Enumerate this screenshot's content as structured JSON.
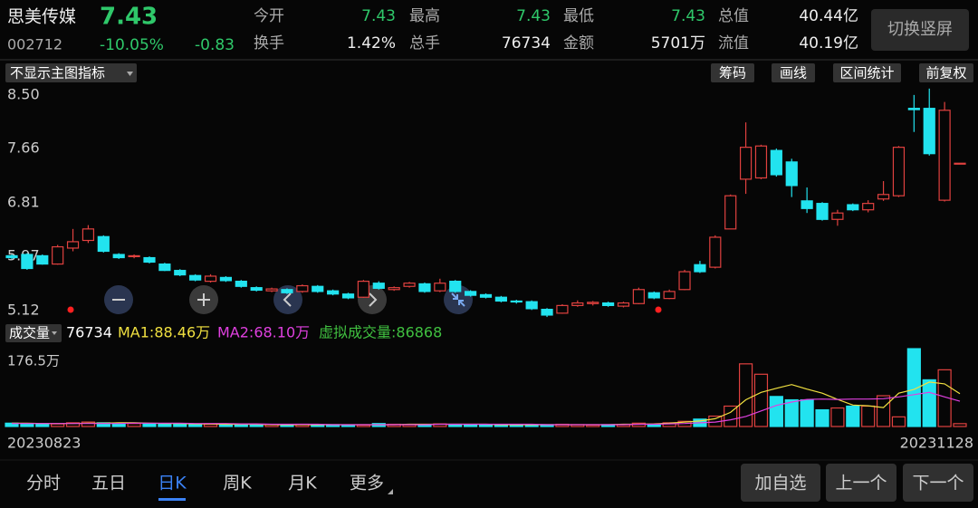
{
  "header": {
    "name": "思美传媒",
    "price": 7.43,
    "code": "002712",
    "pct": "-10.05%",
    "change": -0.83,
    "stats": [
      {
        "label": "今开",
        "value": 7.43,
        "color": "#2fc86a"
      },
      {
        "label": "最高",
        "value": 7.43,
        "color": "#2fc86a"
      },
      {
        "label": "最低",
        "value": 7.43,
        "color": "#2fc86a"
      },
      {
        "label": "总值",
        "value": "40.44亿",
        "color": "#eeeeee"
      },
      {
        "label": "换手",
        "value": "1.42%",
        "color": "#eeeeee"
      },
      {
        "label": "总手",
        "value": 76734,
        "color": "#eeeeee"
      },
      {
        "label": "金额",
        "value": "5701万",
        "color": "#eeeeee"
      },
      {
        "label": "流值",
        "value": "40.19亿",
        "color": "#eeeeee"
      }
    ],
    "button": "切换竖屏"
  },
  "toolbar": {
    "indicator": "不显示主图指标",
    "tools": [
      "筹码",
      "画线",
      "区间统计",
      "前复权"
    ]
  },
  "kline": {
    "type": "candlestick",
    "ylim": [
      4.95,
      8.64
    ],
    "yticks": [
      {
        "value": 8.5,
        "label": "8.50"
      },
      7.66,
      6.81,
      5.97,
      5.12
    ],
    "up_color": "#e0413f",
    "down_color": "#22e3ef",
    "open": [
      5.98,
      6.0,
      5.98,
      5.85,
      6.1,
      6.22,
      6.28,
      6.0,
      5.97,
      5.95,
      5.85,
      5.75,
      5.67,
      5.58,
      5.64,
      5.58,
      5.48,
      5.43,
      5.45,
      5.42,
      5.5,
      5.43,
      5.38,
      5.33,
      5.55,
      5.45,
      5.5,
      5.54,
      5.43,
      5.58,
      5.42,
      5.37,
      5.33,
      5.27,
      5.26,
      5.14,
      5.08,
      5.2,
      5.23,
      5.24,
      5.19,
      5.23,
      5.4,
      5.31,
      5.45,
      5.84,
      5.8,
      6.4,
      7.18,
      7.2,
      7.63,
      7.45,
      6.84,
      6.8,
      6.55,
      6.78,
      6.7,
      6.87,
      6.92,
      8.29,
      8.29,
      6.85,
      7.43
    ],
    "close": [
      5.95,
      5.78,
      5.85,
      6.12,
      6.2,
      6.4,
      6.05,
      5.95,
      5.98,
      5.88,
      5.75,
      5.68,
      5.6,
      5.66,
      5.59,
      5.5,
      5.44,
      5.46,
      5.4,
      5.51,
      5.42,
      5.38,
      5.32,
      5.58,
      5.47,
      5.48,
      5.55,
      5.42,
      5.55,
      5.42,
      5.36,
      5.33,
      5.27,
      5.26,
      5.15,
      5.05,
      5.2,
      5.24,
      5.25,
      5.2,
      5.24,
      5.45,
      5.32,
      5.42,
      5.73,
      5.73,
      6.27,
      6.92,
      7.68,
      7.7,
      7.25,
      7.08,
      6.72,
      6.55,
      6.65,
      6.7,
      6.8,
      6.94,
      7.68,
      8.27,
      7.58,
      8.26,
      7.43
    ],
    "high": [
      6.0,
      6.02,
      6.0,
      6.15,
      6.4,
      6.46,
      6.3,
      6.02,
      6.0,
      5.97,
      5.87,
      5.77,
      5.69,
      5.69,
      5.66,
      5.6,
      5.5,
      5.48,
      5.47,
      5.53,
      5.52,
      5.45,
      5.4,
      5.6,
      5.58,
      5.5,
      5.57,
      5.56,
      5.62,
      5.6,
      5.44,
      5.39,
      5.35,
      5.29,
      5.28,
      5.16,
      5.22,
      5.28,
      5.27,
      5.26,
      5.26,
      5.48,
      5.42,
      5.45,
      5.76,
      5.9,
      6.3,
      6.94,
      8.07,
      7.72,
      7.66,
      7.5,
      7.05,
      6.82,
      6.7,
      6.8,
      6.85,
      7.15,
      7.7,
      8.5,
      8.6,
      8.39,
      7.43
    ],
    "low": [
      5.93,
      5.76,
      5.84,
      5.84,
      6.05,
      6.18,
      6.03,
      5.93,
      5.94,
      5.86,
      5.74,
      5.66,
      5.58,
      5.56,
      5.57,
      5.48,
      5.42,
      5.41,
      5.38,
      5.4,
      5.4,
      5.36,
      5.3,
      5.32,
      5.45,
      5.43,
      5.48,
      5.4,
      5.41,
      5.4,
      5.34,
      5.31,
      5.25,
      5.23,
      5.13,
      5.02,
      5.07,
      5.18,
      5.2,
      5.18,
      5.17,
      5.22,
      5.3,
      5.3,
      5.44,
      5.71,
      5.78,
      6.4,
      6.95,
      7.18,
      7.22,
      6.9,
      6.65,
      6.53,
      6.45,
      6.68,
      6.66,
      6.84,
      6.9,
      7.92,
      7.55,
      6.83,
      7.43
    ]
  },
  "volume": {
    "title": "成交量",
    "current": 76734,
    "ma1_label": "MA1:88.46万",
    "ma2_label": "MA2:68.10万",
    "virtual_label": "虚拟成交量:86868",
    "ma1_color": "#f0e040",
    "ma2_color": "#e040e0",
    "virtual_color": "#40c040",
    "ylim": [
      0,
      215
    ],
    "yticks": [
      {
        "value": 176.5,
        "label": "176.5万"
      }
    ],
    "values": [
      9,
      8,
      6,
      7,
      10,
      12,
      10,
      9,
      8,
      8,
      7,
      7,
      6,
      6,
      5,
      6,
      5,
      5,
      4,
      6,
      5,
      5,
      4,
      4,
      8,
      6,
      5,
      5,
      7,
      6,
      5,
      5,
      4,
      5,
      4,
      5,
      6,
      5,
      4,
      5,
      5,
      9,
      6,
      10,
      14,
      20,
      28,
      55,
      169,
      141,
      81,
      72,
      72,
      45,
      50,
      55,
      55,
      83,
      26,
      210,
      126,
      153,
      7.67
    ],
    "ma1": [
      9,
      9,
      8,
      8,
      8,
      9,
      9,
      10,
      10,
      9,
      8,
      8,
      7,
      7,
      6,
      6,
      6,
      5,
      5,
      5,
      5,
      5,
      5,
      5,
      5,
      5,
      6,
      6,
      6,
      6,
      6,
      6,
      5,
      5,
      5,
      5,
      5,
      5,
      5,
      5,
      6,
      6,
      7,
      9,
      12,
      15,
      21,
      38,
      72,
      92,
      103,
      113,
      101,
      90,
      73,
      58,
      56,
      51,
      90,
      100,
      120,
      115,
      88.46
    ],
    "ma2": [
      8,
      8,
      8,
      8,
      8,
      8,
      8,
      8,
      9,
      9,
      9,
      9,
      8,
      8,
      8,
      7,
      7,
      6,
      6,
      6,
      6,
      5,
      5,
      5,
      5,
      5,
      5,
      5,
      6,
      6,
      6,
      6,
      6,
      6,
      6,
      5,
      5,
      5,
      5,
      5,
      5,
      6,
      6,
      7,
      8,
      10,
      12,
      18,
      27,
      42,
      57,
      66,
      73,
      74,
      73,
      74,
      74,
      75,
      80,
      86,
      92,
      80,
      68.1
    ]
  },
  "dates": {
    "start": "20230823",
    "end": "20231128"
  },
  "tabs": [
    "分时",
    "五日",
    "日K",
    "周K",
    "月K",
    "更多"
  ],
  "buttons": [
    "加自选",
    "上一个",
    "下一个"
  ]
}
